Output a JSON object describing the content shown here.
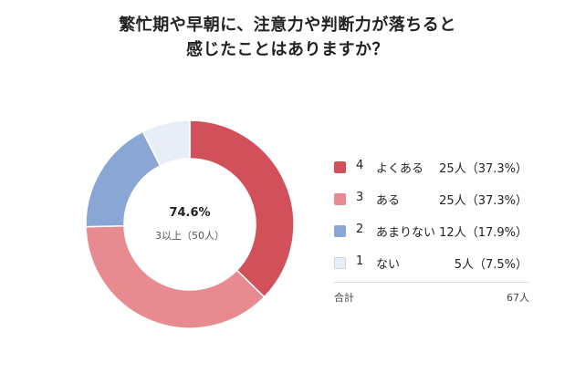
{
  "title": {
    "line1": "繁忙期や早朝に、注意力や判断力が落ちると",
    "line2": "感じたことはありますか？"
  },
  "center": {
    "percent": "74.6%",
    "subtitle": "3以上（50人）"
  },
  "legend": [
    {
      "num": "4",
      "label": "よくある",
      "value": "25人（37.3%）",
      "color": "#d2505a"
    },
    {
      "num": "3",
      "label": "ある",
      "value": "25人（37.3%）",
      "color": "#e88b90"
    },
    {
      "num": "2",
      "label": "あまりない",
      "value": "12人（17.9%）",
      "color": "#8aa6d4"
    },
    {
      "num": "1",
      "label": "ない",
      "value": "5人（7.5%）",
      "color": "#e8eef8"
    }
  ],
  "total": {
    "label": "合計",
    "value": "67人"
  },
  "chart_data": {
    "type": "pie",
    "donut": true,
    "title": "繁忙期や早朝に、注意力や判断力が落ちると感じたことはありますか？",
    "categories": [
      "4 よくある",
      "3 ある",
      "2 あまりない",
      "1 ない"
    ],
    "values": [
      25,
      25,
      12,
      5
    ],
    "percentages": [
      37.3,
      37.3,
      17.9,
      7.5
    ],
    "colors": [
      "#d2505a",
      "#e88b90",
      "#8aa6d4",
      "#e8eef8"
    ],
    "start_angle": "top, clockwise",
    "legend_position": "right"
  }
}
